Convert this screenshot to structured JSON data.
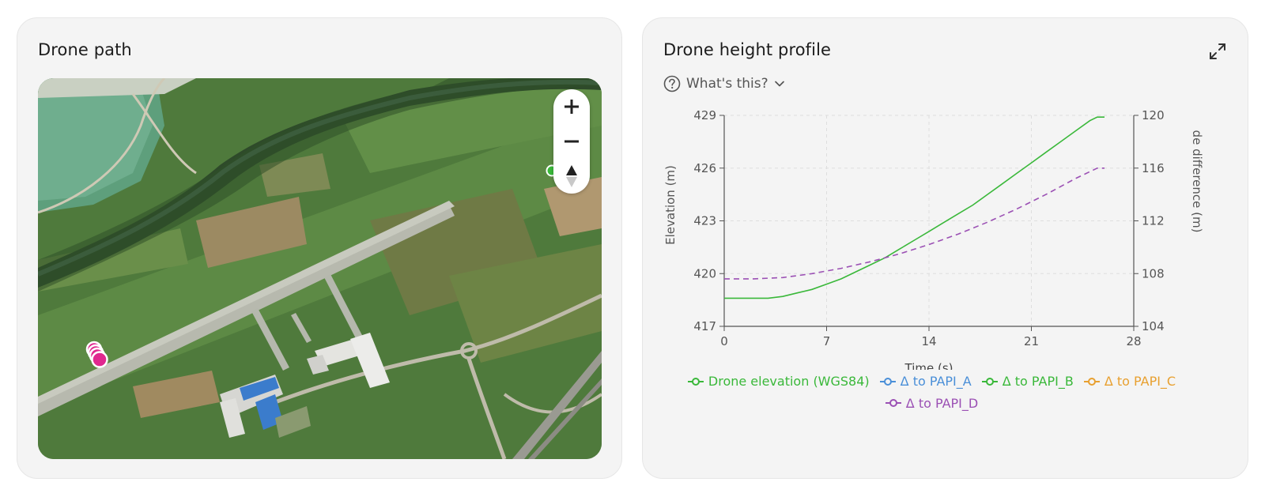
{
  "left_card": {
    "title": "Drone path",
    "zoom_in_symbol": "+",
    "zoom_out_symbol": "−",
    "compass_icon": "compass-north-icon",
    "drone_marker_color": "#e0288f",
    "target_marker_color": "#3ab83a"
  },
  "right_card": {
    "title": "Drone height profile",
    "expand_icon": "expand-icon",
    "whats_this": "What's this?",
    "help_icon": "help-circle-icon",
    "chevron_icon": "chevron-down-icon"
  },
  "chart_data": {
    "type": "line",
    "title": "",
    "xlabel": "Time (s)",
    "ylabel": "Elevation (m)",
    "y2label": "de difference (m)",
    "xlim": [
      0,
      28
    ],
    "ylim": [
      417,
      429
    ],
    "y2lim": [
      104,
      120
    ],
    "xticks": [
      "0",
      "7",
      "14",
      "21",
      "28"
    ],
    "yticks": [
      "417",
      "420",
      "423",
      "426",
      "429"
    ],
    "y2ticks": [
      "104",
      "108",
      "112",
      "116",
      "120"
    ],
    "grid": true,
    "legend_position": "bottom",
    "series": [
      {
        "name": "Drone elevation (WGS84)",
        "axis": "left",
        "color": "#3ab83a",
        "dash": false,
        "points": [
          [
            0,
            418.6
          ],
          [
            3,
            418.6
          ],
          [
            4,
            418.7
          ],
          [
            5,
            418.9
          ],
          [
            6,
            419.1
          ],
          [
            7,
            419.4
          ],
          [
            8,
            419.7
          ],
          [
            9,
            420.1
          ],
          [
            10,
            420.5
          ],
          [
            11,
            420.9
          ],
          [
            12,
            421.4
          ],
          [
            13,
            421.9
          ],
          [
            14,
            422.4
          ],
          [
            15,
            422.9
          ],
          [
            16,
            423.4
          ],
          [
            17,
            423.9
          ],
          [
            18,
            424.5
          ],
          [
            19,
            425.1
          ],
          [
            20,
            425.7
          ],
          [
            21,
            426.3
          ],
          [
            22,
            426.9
          ],
          [
            23,
            427.5
          ],
          [
            24,
            428.1
          ],
          [
            25,
            428.7
          ],
          [
            25.5,
            428.9
          ],
          [
            26,
            428.9
          ]
        ]
      },
      {
        "name": "Δ to PAPI_A",
        "axis": "right",
        "color": "#4a8fd8",
        "dash": false,
        "points": []
      },
      {
        "name": "Δ to PAPI_B",
        "axis": "right",
        "color": "#3ab83a",
        "dash": false,
        "points": []
      },
      {
        "name": "Δ to PAPI_C",
        "axis": "right",
        "color": "#e8a030",
        "dash": false,
        "points": []
      },
      {
        "name": "Δ to PAPI_D",
        "axis": "right",
        "color": "#9b50b4",
        "dash": true,
        "points": [
          [
            0,
            107.6
          ],
          [
            2,
            107.6
          ],
          [
            4,
            107.7
          ],
          [
            6,
            108.0
          ],
          [
            8,
            108.4
          ],
          [
            10,
            108.9
          ],
          [
            12,
            109.5
          ],
          [
            14,
            110.2
          ],
          [
            16,
            111.0
          ],
          [
            18,
            111.9
          ],
          [
            20,
            112.9
          ],
          [
            22,
            114.0
          ],
          [
            24,
            115.2
          ],
          [
            25.5,
            116.0
          ],
          [
            26,
            116.0
          ]
        ]
      }
    ]
  }
}
